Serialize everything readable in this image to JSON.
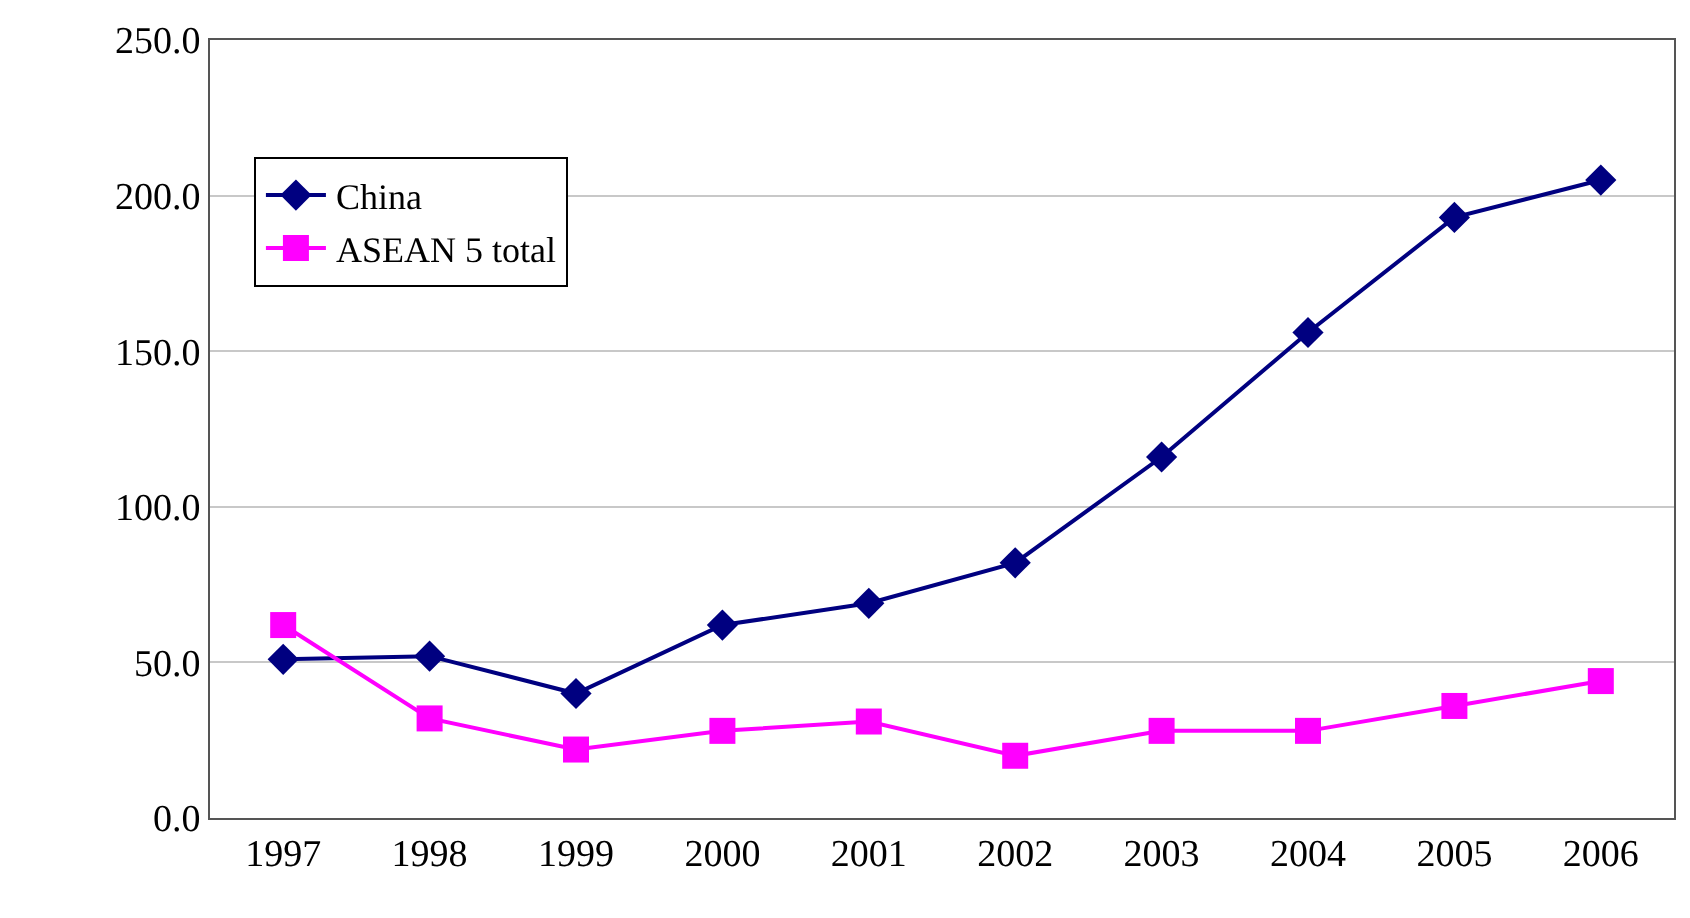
{
  "chart_data": {
    "type": "line",
    "categories": [
      "1997",
      "1998",
      "1999",
      "2000",
      "2001",
      "2002",
      "2003",
      "2004",
      "2005",
      "2006"
    ],
    "series": [
      {
        "name": "China",
        "color": "#000080",
        "marker": "diamond",
        "values": [
          51,
          52,
          40,
          62,
          69,
          82,
          116,
          156,
          193,
          205
        ]
      },
      {
        "name": "ASEAN 5 total",
        "color": "#ff00ff",
        "marker": "square",
        "values": [
          62,
          32,
          22,
          28,
          31,
          20,
          28,
          28,
          36,
          44
        ]
      }
    ],
    "ylim": [
      0,
      250
    ],
    "yticks": [
      {
        "value": 0,
        "label": "0.0"
      },
      {
        "value": 50,
        "label": "50.0"
      },
      {
        "value": 100,
        "label": "100.0"
      },
      {
        "value": 150,
        "label": "150.0"
      },
      {
        "value": 200,
        "label": "200.0"
      },
      {
        "value": 250,
        "label": "250.0"
      }
    ],
    "grid": "y",
    "legend": "top left"
  }
}
